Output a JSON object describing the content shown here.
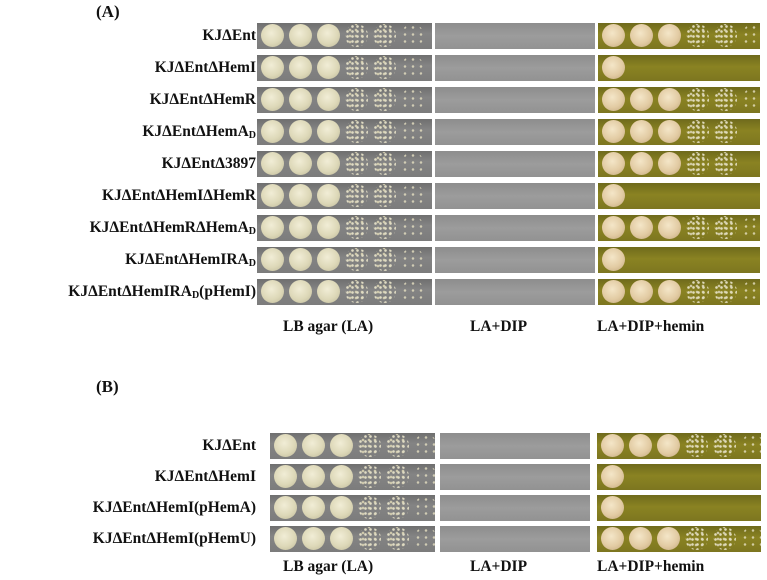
{
  "panel_a": {
    "label": "(A)",
    "strains": [
      {
        "text": "KJΔEnt",
        "sub": ""
      },
      {
        "text": "KJΔEntΔHemI",
        "sub": ""
      },
      {
        "text": "KJΔEntΔHemR",
        "sub": ""
      },
      {
        "text": "KJΔEntΔHemA",
        "sub": "D"
      },
      {
        "text": "KJΔEntΔ3897",
        "sub": ""
      },
      {
        "text": "KJΔEntΔHemIΔHemR",
        "sub": ""
      },
      {
        "text": "KJΔEntΔHemRΔHemA",
        "sub": "D"
      },
      {
        "text": "KJΔEntΔHemIRA",
        "sub": "D"
      },
      {
        "text": "KJΔEntΔHemIRA",
        "sub": "D",
        "suffix": "(pHemI)"
      }
    ],
    "hemin_growth": [
      5,
      0,
      5,
      4,
      4,
      0,
      5,
      0,
      5
    ]
  },
  "panel_b": {
    "label": "(B)",
    "strains": [
      {
        "text": "KJΔEnt",
        "sub": ""
      },
      {
        "text": "KJΔEntΔHemI",
        "sub": ""
      },
      {
        "text": "KJΔEntΔHemI(pHemA)",
        "sub": ""
      },
      {
        "text": "KJΔEntΔHemI(pHemU)",
        "sub": ""
      }
    ],
    "hemin_growth": [
      5,
      0,
      0,
      5
    ]
  },
  "conditions": [
    "LB agar (LA)",
    "LA+DIP",
    "LA+DIP+hemin"
  ]
}
